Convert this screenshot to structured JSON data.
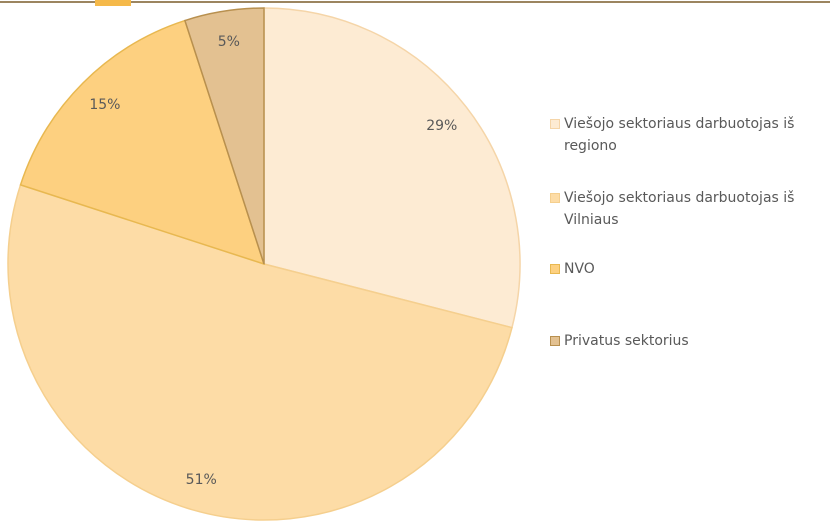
{
  "chart_data": {
    "type": "pie",
    "categories": [
      "Viešojo sektoriaus darbuotojas iš regiono",
      "Viešojo sektoriaus darbuotojas iš Vilniaus",
      "NVO",
      "Privatus sektorius"
    ],
    "values": [
      29,
      51,
      15,
      5
    ],
    "value_labels": [
      "29%",
      "51%",
      "15%",
      "5%"
    ],
    "colors": [
      "#fdebd3",
      "#fddca6",
      "#fdd080",
      "#e3c191"
    ],
    "legend": "right"
  }
}
